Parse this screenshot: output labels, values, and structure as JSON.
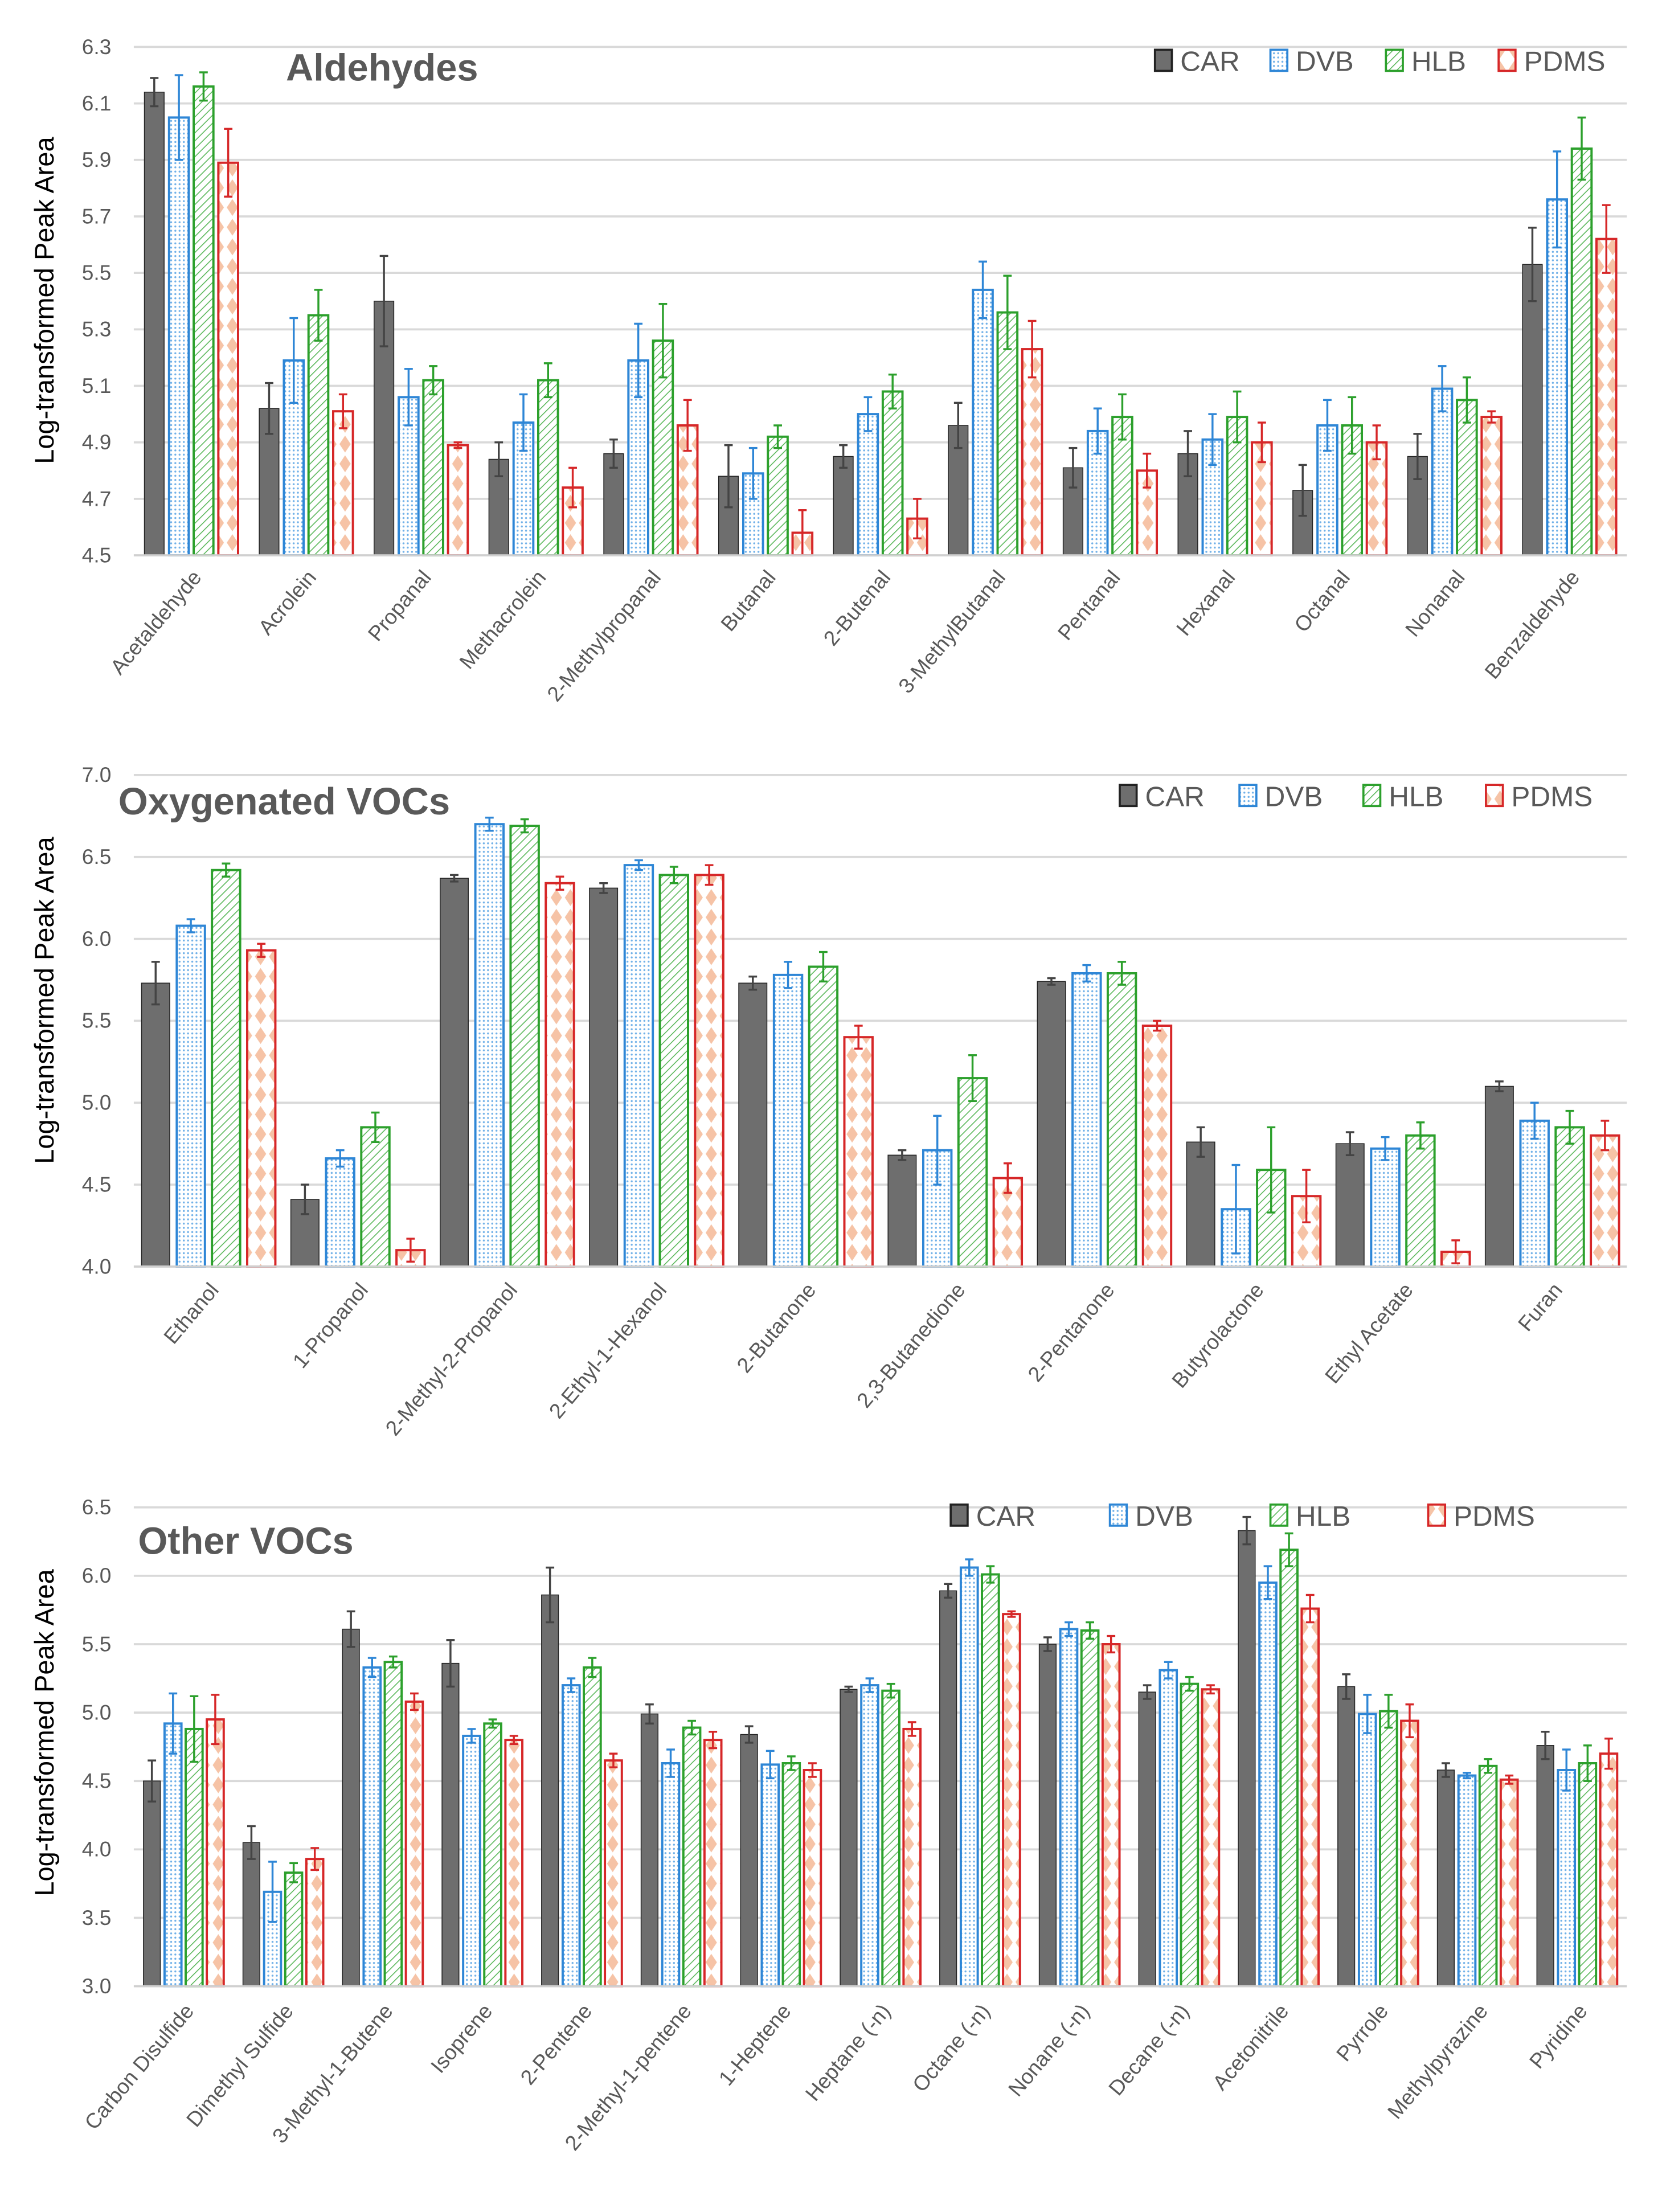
{
  "colors": {
    "CAR": "#6e6e6e",
    "DVB": "#2e86d6",
    "HLB": "#2ca02c",
    "PDMS": "#d62728",
    "grid": "#d9d9d9"
  },
  "chart_data": [
    {
      "type": "bar",
      "title": "Aldehydes",
      "ylabel": "Log-transformed Peak Area",
      "xlabel": "",
      "ylim": [
        4.5,
        6.3
      ],
      "yticks": [
        "4.5",
        "4.7",
        "4.9",
        "5.1",
        "5.3",
        "5.5",
        "5.7",
        "5.9",
        "6.1",
        "6.3"
      ],
      "grid": true,
      "legend": "top-right",
      "categories": [
        "Acetaldehyde",
        "Acrolein",
        "Propanal",
        "Methacrolein",
        "2-Methylpropanal",
        "Butanal",
        "2-Butenal",
        "3-MethylButanal",
        "Pentanal",
        "Hexanal",
        "Octanal",
        "Nonanal",
        "Benzaldehyde"
      ],
      "series": [
        {
          "name": "CAR",
          "values": [
            6.14,
            5.02,
            5.4,
            4.84,
            4.86,
            4.78,
            4.85,
            4.96,
            4.81,
            4.86,
            4.73,
            4.85,
            5.53
          ],
          "errors": [
            0.05,
            0.09,
            0.16,
            0.06,
            0.05,
            0.11,
            0.04,
            0.08,
            0.07,
            0.08,
            0.09,
            0.08,
            0.13
          ]
        },
        {
          "name": "DVB",
          "values": [
            6.05,
            5.19,
            5.06,
            4.97,
            5.19,
            4.79,
            5.0,
            5.44,
            4.94,
            4.91,
            4.96,
            5.09,
            5.76
          ],
          "errors": [
            0.15,
            0.15,
            0.1,
            0.1,
            0.13,
            0.09,
            0.06,
            0.1,
            0.08,
            0.09,
            0.09,
            0.08,
            0.17
          ]
        },
        {
          "name": "HLB",
          "values": [
            6.16,
            5.35,
            5.12,
            5.12,
            5.26,
            4.92,
            5.08,
            5.36,
            4.99,
            4.99,
            4.96,
            5.05,
            5.94
          ],
          "errors": [
            0.05,
            0.09,
            0.05,
            0.06,
            0.13,
            0.04,
            0.06,
            0.13,
            0.08,
            0.09,
            0.1,
            0.08,
            0.11
          ]
        },
        {
          "name": "PDMS",
          "values": [
            5.89,
            5.01,
            4.89,
            4.74,
            4.96,
            4.58,
            4.63,
            5.23,
            4.8,
            4.9,
            4.9,
            4.99,
            5.62
          ],
          "errors": [
            0.12,
            0.06,
            0.01,
            0.07,
            0.09,
            0.08,
            0.07,
            0.1,
            0.06,
            0.07,
            0.06,
            0.02,
            0.12
          ]
        }
      ]
    },
    {
      "type": "bar",
      "title": "Oxygenated  VOCs",
      "ylabel": "Log-transformed Peak Area",
      "xlabel": "",
      "ylim": [
        4.0,
        7.0
      ],
      "yticks": [
        "4.0",
        "4.5",
        "5.0",
        "5.5",
        "6.0",
        "6.5",
        "7.0"
      ],
      "grid": true,
      "legend": "top-right",
      "categories": [
        "Ethanol",
        "1-Propanol",
        "2-Methyl-2-Propanol",
        "2-Ethyl-1-Hexanol",
        "2-Butanone",
        "2,3-Butanedione",
        "2-Pentanone",
        "Butyrolactone",
        "Ethyl Acetate",
        "Furan"
      ],
      "series": [
        {
          "name": "CAR",
          "values": [
            5.73,
            4.41,
            6.37,
            6.31,
            5.73,
            4.68,
            5.74,
            4.76,
            4.75,
            5.1
          ],
          "errors": [
            0.13,
            0.09,
            0.02,
            0.03,
            0.04,
            0.03,
            0.02,
            0.09,
            0.07,
            0.03
          ]
        },
        {
          "name": "DVB",
          "values": [
            6.08,
            4.66,
            6.7,
            6.45,
            5.78,
            4.71,
            5.79,
            4.35,
            4.72,
            4.89
          ],
          "errors": [
            0.04,
            0.05,
            0.04,
            0.03,
            0.08,
            0.21,
            0.05,
            0.27,
            0.07,
            0.11
          ]
        },
        {
          "name": "HLB",
          "values": [
            6.42,
            4.85,
            6.69,
            6.39,
            5.83,
            5.15,
            5.79,
            4.59,
            4.8,
            4.85
          ],
          "errors": [
            0.04,
            0.09,
            0.04,
            0.05,
            0.09,
            0.14,
            0.07,
            0.26,
            0.08,
            0.1
          ]
        },
        {
          "name": "PDMS",
          "values": [
            5.93,
            4.1,
            6.34,
            6.39,
            5.4,
            4.54,
            5.47,
            4.43,
            4.09,
            4.8
          ],
          "errors": [
            0.04,
            0.07,
            0.04,
            0.06,
            0.07,
            0.09,
            0.03,
            0.16,
            0.07,
            0.09
          ]
        }
      ]
    },
    {
      "type": "bar",
      "title": "Other VOCs",
      "ylabel": "Log-transformed Peak Area",
      "xlabel": "",
      "ylim": [
        3.0,
        6.5
      ],
      "yticks": [
        "3.0",
        "3.5",
        "4.0",
        "4.5",
        "5.0",
        "5.5",
        "6.0",
        "6.5"
      ],
      "grid": true,
      "legend": "top-right",
      "categories": [
        "Carbon Disulfide",
        "Dimethyl Sulfide",
        "3-Methyl-1-Butene",
        "Isoprene",
        "2-Pentene",
        "2-Methyl-1-pentene",
        "1-Heptene",
        "Heptane (-n)",
        "Octane (-n)",
        "Nonane (-n)",
        "Decane (-n)",
        "Acetonitrile",
        "Pyrrole",
        "Methylpyrazine",
        "Pyridine"
      ],
      "series": [
        {
          "name": "CAR",
          "values": [
            4.5,
            4.05,
            5.61,
            5.36,
            5.86,
            4.99,
            4.84,
            5.17,
            5.89,
            5.5,
            5.15,
            6.33,
            5.19,
            4.58,
            4.76
          ],
          "errors": [
            0.15,
            0.12,
            0.13,
            0.17,
            0.2,
            0.07,
            0.06,
            0.02,
            0.05,
            0.05,
            0.05,
            0.1,
            0.09,
            0.05,
            0.1
          ]
        },
        {
          "name": "DVB",
          "values": [
            4.92,
            3.69,
            5.33,
            4.83,
            5.2,
            4.63,
            4.62,
            5.2,
            6.06,
            5.61,
            5.31,
            5.95,
            4.99,
            4.54,
            4.58
          ],
          "errors": [
            0.22,
            0.22,
            0.07,
            0.05,
            0.05,
            0.1,
            0.1,
            0.05,
            0.06,
            0.05,
            0.06,
            0.12,
            0.14,
            0.02,
            0.15
          ]
        },
        {
          "name": "HLB",
          "values": [
            4.88,
            3.83,
            5.37,
            4.92,
            5.33,
            4.89,
            4.63,
            5.16,
            6.01,
            5.6,
            5.21,
            6.19,
            5.01,
            4.61,
            4.63
          ],
          "errors": [
            0.24,
            0.07,
            0.04,
            0.03,
            0.07,
            0.05,
            0.05,
            0.05,
            0.06,
            0.06,
            0.05,
            0.12,
            0.12,
            0.05,
            0.13
          ]
        },
        {
          "name": "PDMS",
          "values": [
            4.95,
            3.93,
            5.08,
            4.8,
            4.65,
            4.8,
            4.58,
            4.88,
            5.72,
            5.5,
            5.17,
            5.76,
            4.94,
            4.51,
            4.7
          ],
          "errors": [
            0.18,
            0.08,
            0.06,
            0.03,
            0.05,
            0.06,
            0.05,
            0.05,
            0.02,
            0.06,
            0.03,
            0.1,
            0.12,
            0.03,
            0.11
          ]
        }
      ]
    }
  ]
}
